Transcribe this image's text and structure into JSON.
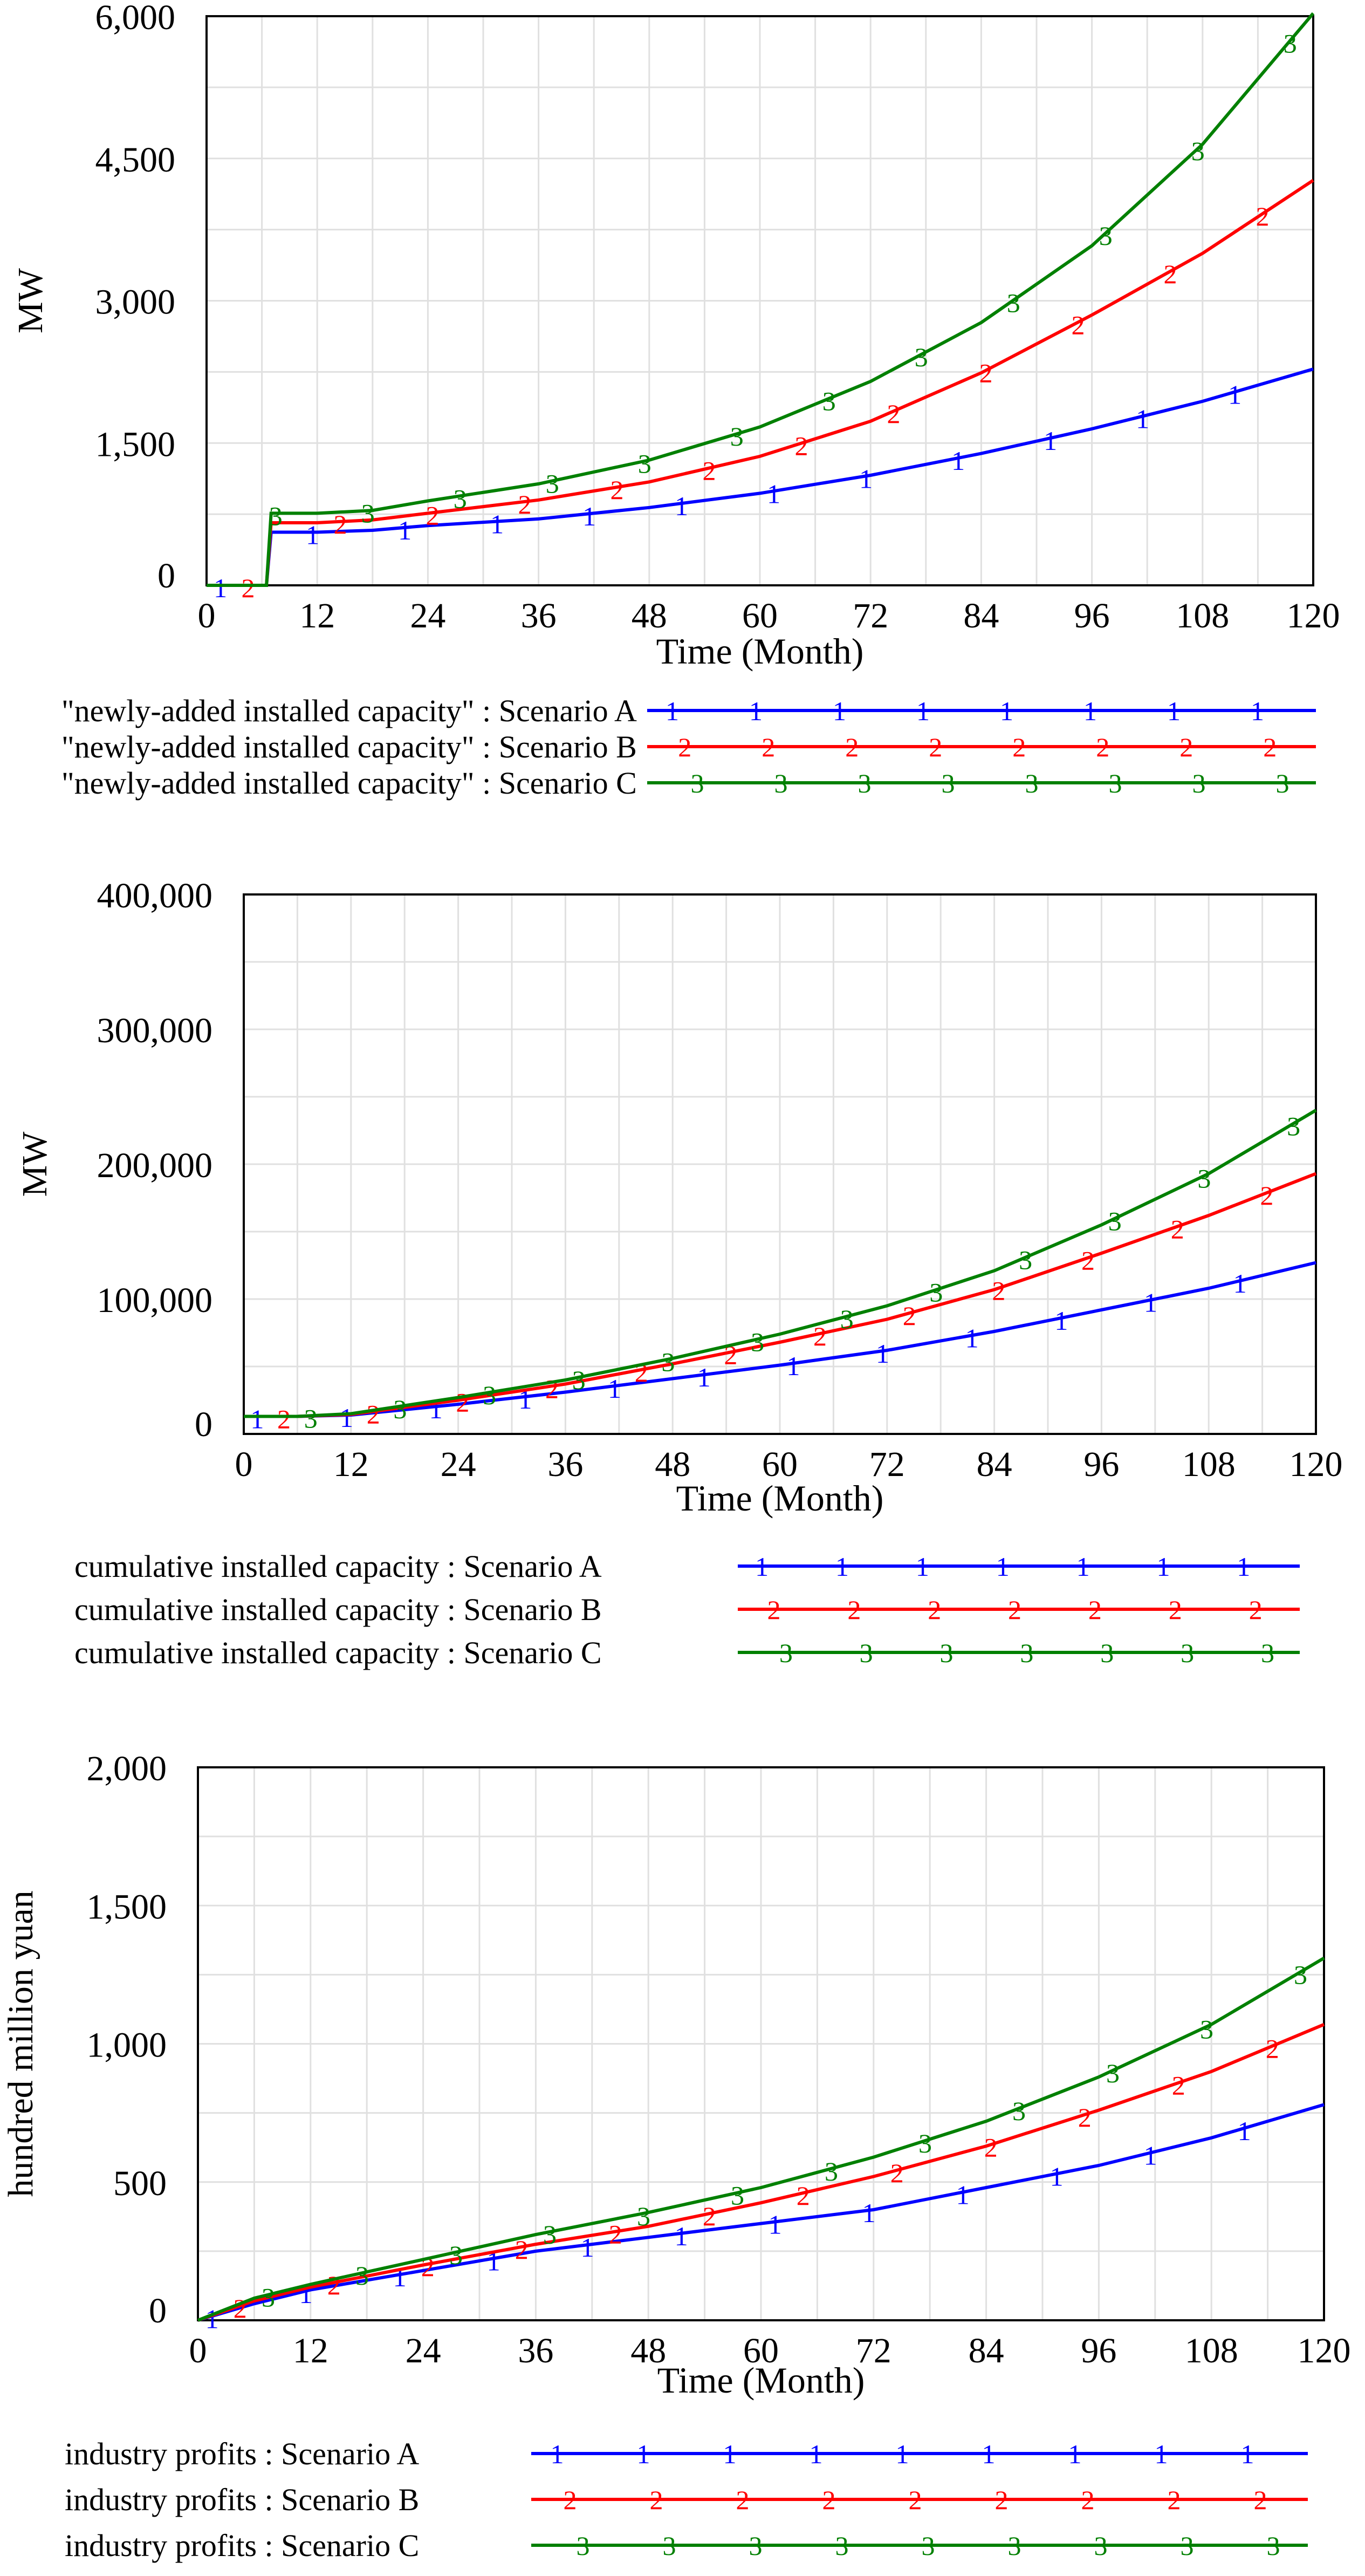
{
  "chart_data": [
    {
      "type": "line",
      "xlabel": "Time (Month)",
      "ylabel": "MW",
      "xlim": [
        0,
        120
      ],
      "ylim": [
        0,
        6000
      ],
      "xticks": [
        "0",
        "12",
        "24",
        "36",
        "48",
        "60",
        "72",
        "84",
        "96",
        "108",
        "120"
      ],
      "yticks": [
        "0",
        "1,500",
        "3,000",
        "4,500",
        "6,000"
      ],
      "grid": true,
      "x": [
        0,
        6.5,
        7,
        12,
        18,
        24,
        36,
        48,
        60,
        72,
        84,
        96,
        108,
        120
      ],
      "series": [
        {
          "name": "\"newly-added installed capacity\" : Scenario A",
          "marker": "1",
          "color": "#0000ff",
          "values": [
            0,
            0,
            560,
            560,
            580,
            630,
            700,
            820,
            970,
            1160,
            1390,
            1650,
            1940,
            2280
          ]
        },
        {
          "name": "\"newly-added installed capacity\" : Scenario B",
          "marker": "2",
          "color": "#ff0000",
          "values": [
            0,
            0,
            660,
            660,
            690,
            760,
            900,
            1090,
            1360,
            1730,
            2240,
            2850,
            3500,
            4270
          ]
        },
        {
          "name": "\"newly-added installed capacity\" : Scenario C",
          "marker": "3",
          "color": "#008000",
          "values": [
            0,
            0,
            760,
            760,
            790,
            890,
            1070,
            1320,
            1670,
            2150,
            2770,
            3580,
            4650,
            6030
          ]
        }
      ]
    },
    {
      "type": "line",
      "xlabel": "Time (Month)",
      "ylabel": "MW",
      "xlim": [
        0,
        120
      ],
      "ylim": [
        0,
        400000
      ],
      "xticks": [
        "0",
        "12",
        "24",
        "36",
        "48",
        "60",
        "72",
        "84",
        "96",
        "108",
        "120"
      ],
      "yticks": [
        "0",
        "100,000",
        "200,000",
        "300,000",
        "400,000"
      ],
      "grid": true,
      "x": [
        0,
        6,
        12,
        24,
        36,
        48,
        60,
        72,
        84,
        96,
        108,
        120
      ],
      "series": [
        {
          "name": "cumulative installed capacity : Scenario A",
          "marker": "1",
          "color": "#0000ff",
          "values": [
            13000,
            13000,
            14000,
            22000,
            31000,
            41000,
            51000,
            62000,
            76000,
            92000,
            108000,
            127000
          ]
        },
        {
          "name": "cumulative installed capacity : Scenario B",
          "marker": "2",
          "color": "#ff0000",
          "values": [
            13000,
            13000,
            14500,
            25000,
            37000,
            52000,
            68000,
            85000,
            107000,
            134000,
            162000,
            193000
          ]
        },
        {
          "name": "cumulative installed capacity : Scenario C",
          "marker": "3",
          "color": "#008000",
          "values": [
            13000,
            13000,
            15000,
            27000,
            40000,
            56000,
            74000,
            95000,
            121000,
            155000,
            193000,
            240000
          ]
        }
      ]
    },
    {
      "type": "line",
      "xlabel": "Time (Month)",
      "ylabel": "hundred million yuan",
      "xlim": [
        0,
        120
      ],
      "ylim": [
        0,
        2000
      ],
      "xticks": [
        "0",
        "12",
        "24",
        "36",
        "48",
        "60",
        "72",
        "84",
        "96",
        "108",
        "120"
      ],
      "yticks": [
        "0",
        "500",
        "1,000",
        "1,500",
        "2,000"
      ],
      "grid": true,
      "x": [
        0,
        6,
        12,
        24,
        36,
        48,
        60,
        72,
        84,
        96,
        108,
        120
      ],
      "series": [
        {
          "name": "industry profits : Scenario A",
          "marker": "1",
          "color": "#0000ff",
          "values": [
            0,
            60,
            110,
            180,
            250,
            300,
            350,
            400,
            480,
            560,
            660,
            780
          ]
        },
        {
          "name": "industry profits : Scenario B",
          "marker": "2",
          "color": "#ff0000",
          "values": [
            0,
            70,
            120,
            200,
            275,
            340,
            425,
            520,
            630,
            760,
            900,
            1070
          ]
        },
        {
          "name": "industry profits : Scenario C",
          "marker": "3",
          "color": "#008000",
          "values": [
            0,
            80,
            130,
            220,
            310,
            390,
            480,
            590,
            720,
            880,
            1070,
            1310
          ]
        }
      ]
    }
  ]
}
